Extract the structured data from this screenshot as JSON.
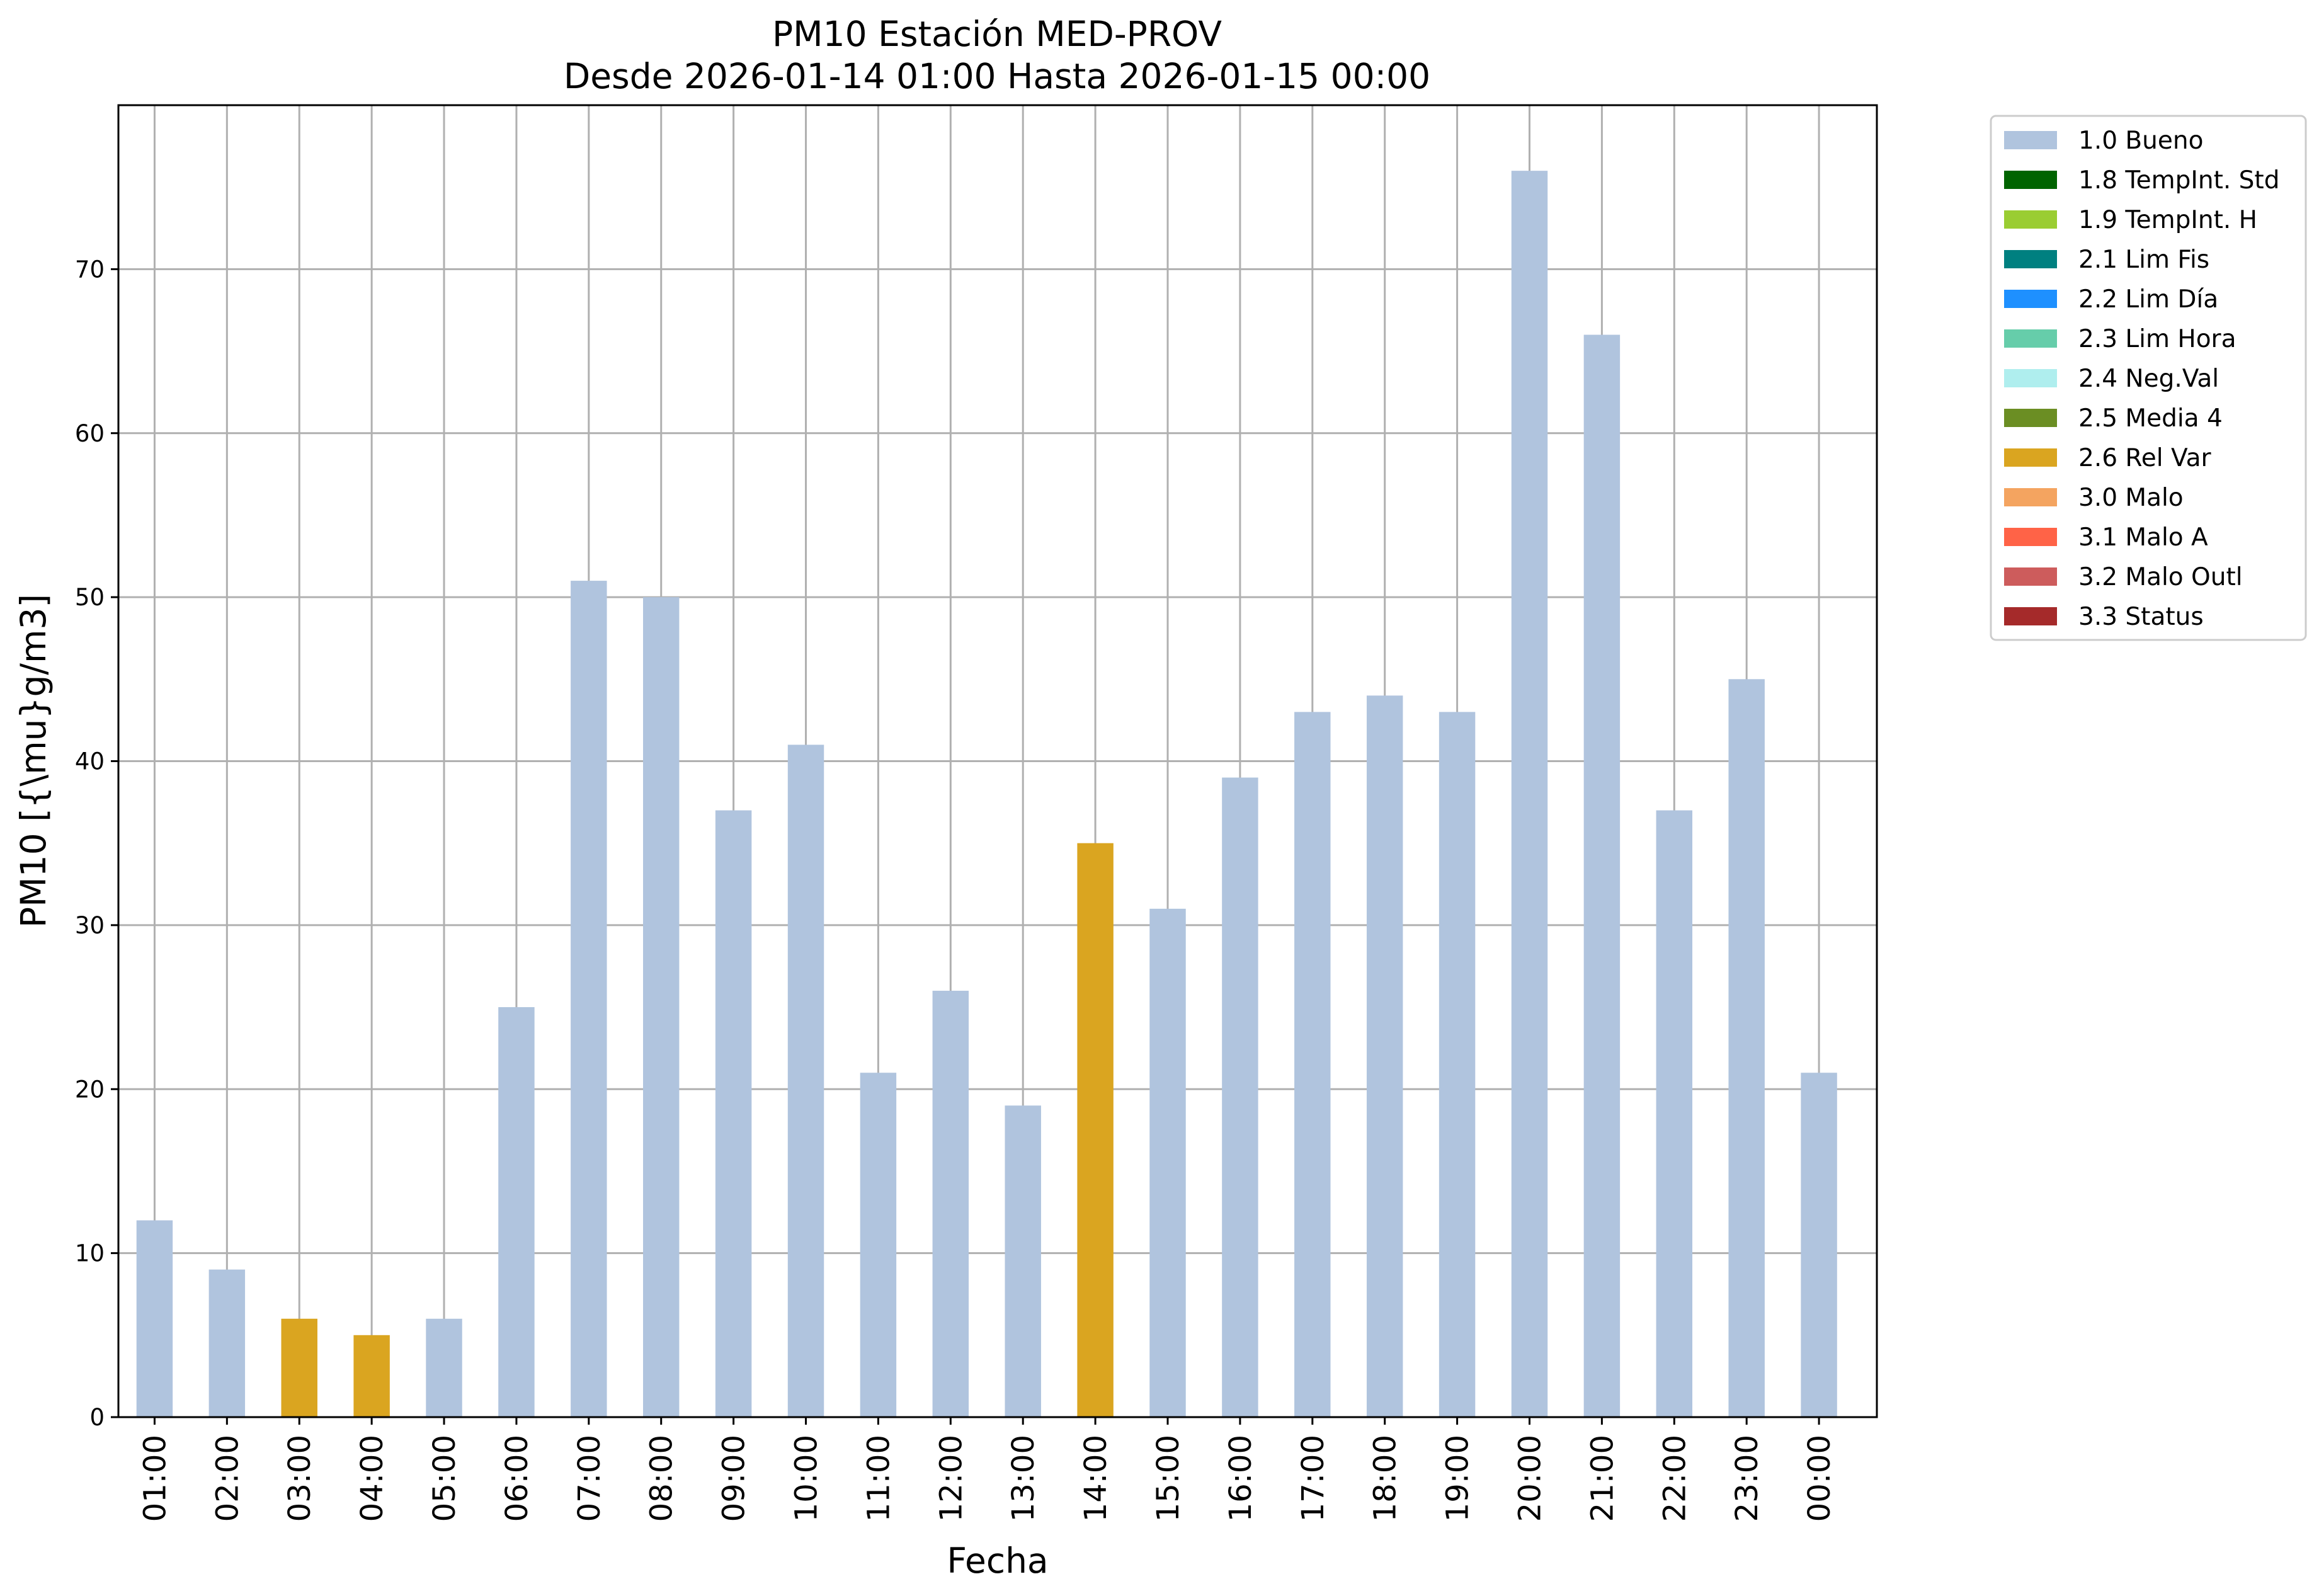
{
  "chart_data": {
    "type": "bar",
    "title": "PM10 Estación MED-PROV",
    "subtitle": "Desde 2026-01-14 01:00 Hasta 2026-01-15 00:00",
    "xlabel": "Fecha",
    "ylabel": "PM10 [{\\mu}g/m3]",
    "ylim": [
      0,
      80
    ],
    "yticks": [
      0,
      10,
      20,
      30,
      40,
      50,
      60,
      70
    ],
    "grid": true,
    "legend_position": "outside-top-right",
    "categories": [
      "01:00",
      "02:00",
      "03:00",
      "04:00",
      "05:00",
      "06:00",
      "07:00",
      "08:00",
      "09:00",
      "10:00",
      "11:00",
      "12:00",
      "13:00",
      "14:00",
      "15:00",
      "16:00",
      "17:00",
      "18:00",
      "19:00",
      "20:00",
      "21:00",
      "22:00",
      "23:00",
      "00:00"
    ],
    "values": [
      12,
      9,
      6,
      5,
      6,
      25,
      51,
      50,
      37,
      41,
      21,
      26,
      19,
      35,
      31,
      39,
      43,
      44,
      43,
      76,
      66,
      37,
      45,
      21
    ],
    "flags": [
      "1.0",
      "1.0",
      "2.6",
      "2.6",
      "1.0",
      "1.0",
      "1.0",
      "1.0",
      "1.0",
      "1.0",
      "1.0",
      "1.0",
      "1.0",
      "2.6",
      "1.0",
      "1.0",
      "1.0",
      "1.0",
      "1.0",
      "1.0",
      "1.0",
      "1.0",
      "1.0",
      "1.0"
    ],
    "legend": [
      {
        "code": "1.0",
        "label": "1.0 Bueno",
        "color": "#b0c4de"
      },
      {
        "code": "1.8",
        "label": "1.8 TempInt. Std",
        "color": "#006400"
      },
      {
        "code": "1.9",
        "label": "1.9 TempInt. H",
        "color": "#9acd32"
      },
      {
        "code": "2.1",
        "label": "2.1 Lim Fis",
        "color": "#008080"
      },
      {
        "code": "2.2",
        "label": "2.2 Lim Día",
        "color": "#1e90ff"
      },
      {
        "code": "2.3",
        "label": "2.3 Lim Hora",
        "color": "#66cdaa"
      },
      {
        "code": "2.4",
        "label": "2.4 Neg.Val",
        "color": "#afeeee"
      },
      {
        "code": "2.5",
        "label": "2.5 Media 4",
        "color": "#6b8e23"
      },
      {
        "code": "2.6",
        "label": "2.6 Rel Var",
        "color": "#daa520"
      },
      {
        "code": "3.0",
        "label": "3.0 Malo",
        "color": "#f4a460"
      },
      {
        "code": "3.1",
        "label": "3.1 Malo A",
        "color": "#ff6347"
      },
      {
        "code": "3.2",
        "label": "3.2 Malo Outl",
        "color": "#cd5c5c"
      },
      {
        "code": "3.3",
        "label": "3.3 Status",
        "color": "#a52a2a"
      }
    ]
  }
}
